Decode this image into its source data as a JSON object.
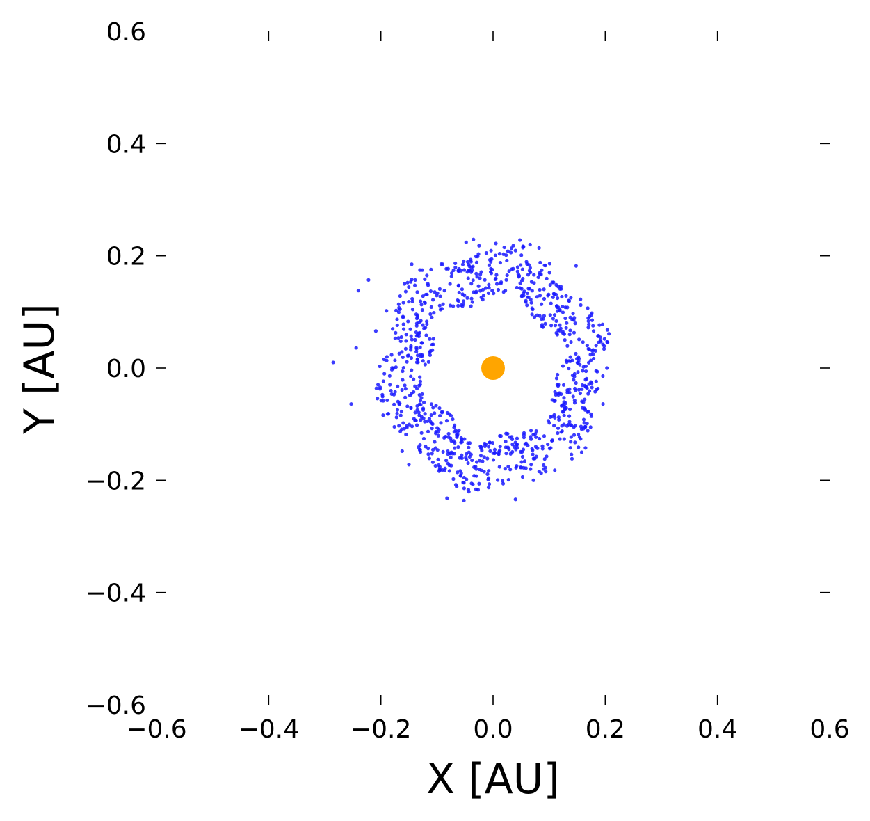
{
  "chart_data": {
    "type": "scatter",
    "title": "",
    "xlabel": "X [AU]",
    "ylabel": "Y [AU]",
    "xlim": [
      -0.6,
      0.6
    ],
    "ylim": [
      -0.6,
      0.6
    ],
    "x_ticks": [
      -0.6,
      -0.4,
      -0.2,
      0.0,
      0.2,
      0.4,
      0.6
    ],
    "y_ticks": [
      -0.6,
      -0.4,
      -0.2,
      0.0,
      0.2,
      0.4,
      0.6
    ],
    "x_tick_labels": [
      "−0.6",
      "−0.4",
      "−0.2",
      "0.0",
      "0.2",
      "0.4",
      "0.6"
    ],
    "y_tick_labels": [
      "−0.6",
      "−0.4",
      "−0.2",
      "0.0",
      "0.2",
      "0.4",
      "0.6"
    ],
    "grid": false,
    "frame": false,
    "series": [
      {
        "color": "#1a1aff",
        "points": [
          [
            -0.285,
            0.01
          ],
          [
            -0.253,
            -0.064
          ],
          [
            -0.244,
            0.036
          ],
          [
            -0.24,
            0.138
          ],
          [
            -0.222,
            0.157
          ],
          [
            -0.048,
            0.224
          ],
          [
            -0.035,
            0.229
          ],
          [
            -0.025,
            0.218
          ],
          [
            -0.012,
            0.205
          ],
          [
            0.005,
            0.222
          ],
          [
            0.02,
            0.215
          ],
          [
            0.036,
            0.218
          ],
          [
            0.048,
            0.228
          ],
          [
            0.066,
            0.22
          ],
          [
            0.082,
            0.214
          ],
          [
            0.148,
            0.182
          ],
          [
            0.172,
            0.092
          ],
          [
            0.196,
            0.042
          ],
          [
            0.203,
            0.0
          ],
          [
            0.196,
            -0.064
          ],
          [
            0.158,
            -0.15
          ],
          [
            0.092,
            -0.162
          ],
          [
            0.072,
            -0.2
          ],
          [
            0.04,
            -0.234
          ],
          [
            0.018,
            -0.206
          ],
          [
            -0.008,
            -0.196
          ],
          [
            -0.03,
            -0.18
          ],
          [
            -0.052,
            -0.236
          ],
          [
            -0.082,
            -0.232
          ],
          [
            -0.095,
            -0.176
          ],
          [
            -0.15,
            -0.172
          ],
          [
            -0.162,
            -0.148
          ],
          [
            -0.196,
            -0.084
          ],
          [
            -0.208,
            -0.036
          ],
          [
            -0.209,
            0.066
          ],
          [
            -0.19,
            0.102
          ],
          [
            -0.158,
            0.15
          ],
          [
            -0.145,
            0.185
          ],
          [
            -0.118,
            0.165
          ],
          [
            -0.09,
            0.185
          ]
        ]
      }
    ],
    "star": {
      "x": 0.0,
      "y": 0.0,
      "color": "#ffa500"
    }
  }
}
